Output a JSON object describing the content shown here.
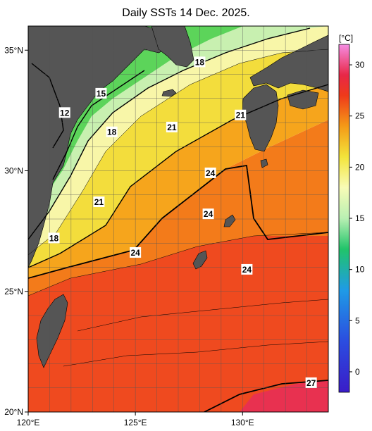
{
  "title": "Daily SSTs 14 Dec. 2025.",
  "map": {
    "lon_range": [
      120,
      134
    ],
    "lat_range": [
      20,
      36
    ],
    "x_ticks": [
      {
        "value": 120,
        "label": "120°E"
      },
      {
        "value": 125,
        "label": "125°E"
      },
      {
        "value": 130,
        "label": "130°E"
      }
    ],
    "y_ticks": [
      {
        "value": 35,
        "label": "35°N"
      },
      {
        "value": 30,
        "label": "30°N"
      },
      {
        "value": 25,
        "label": "25°N"
      },
      {
        "value": 20,
        "label": "20°N"
      }
    ],
    "grid": true,
    "land_color": "#555555",
    "isotherm_labels": [
      {
        "text": "12",
        "lon": 121.7,
        "lat": 32.4
      },
      {
        "text": "15",
        "lon": 123.4,
        "lat": 33.2
      },
      {
        "text": "18",
        "lon": 123.9,
        "lat": 31.6
      },
      {
        "text": "18",
        "lon": 128.0,
        "lat": 34.5
      },
      {
        "text": "18",
        "lon": 121.2,
        "lat": 27.2
      },
      {
        "text": "21",
        "lon": 126.7,
        "lat": 31.8
      },
      {
        "text": "21",
        "lon": 129.9,
        "lat": 32.3
      },
      {
        "text": "21",
        "lon": 123.3,
        "lat": 28.7
      },
      {
        "text": "24",
        "lon": 128.5,
        "lat": 29.9
      },
      {
        "text": "24",
        "lon": 128.4,
        "lat": 28.2
      },
      {
        "text": "24",
        "lon": 125.0,
        "lat": 26.6
      },
      {
        "text": "24",
        "lon": 130.2,
        "lat": 25.9
      },
      {
        "text": "27",
        "lon": 133.2,
        "lat": 21.2
      }
    ]
  },
  "colorbar": {
    "unit": "[°C]",
    "ticks": [
      {
        "value": 30,
        "label": "30"
      },
      {
        "value": 25,
        "label": "25"
      },
      {
        "value": 20,
        "label": "20"
      },
      {
        "value": 15,
        "label": "15"
      },
      {
        "value": 10,
        "label": "10"
      },
      {
        "value": 5,
        "label": "5"
      },
      {
        "value": 0,
        "label": "0"
      }
    ],
    "range": [
      -2,
      32
    ],
    "stops": [
      {
        "value": -2,
        "color": "#3a1cc8"
      },
      {
        "value": 3,
        "color": "#2b4de0"
      },
      {
        "value": 8,
        "color": "#1f9be6"
      },
      {
        "value": 12,
        "color": "#21c46a"
      },
      {
        "value": 15,
        "color": "#b9f0b3"
      },
      {
        "value": 18,
        "color": "#f8fbb6"
      },
      {
        "value": 21,
        "color": "#f3e43a"
      },
      {
        "value": 24,
        "color": "#f59a17"
      },
      {
        "value": 27,
        "color": "#ef3a1a"
      },
      {
        "value": 29,
        "color": "#e82747"
      },
      {
        "value": 32,
        "color": "#f58de3"
      }
    ]
  }
}
